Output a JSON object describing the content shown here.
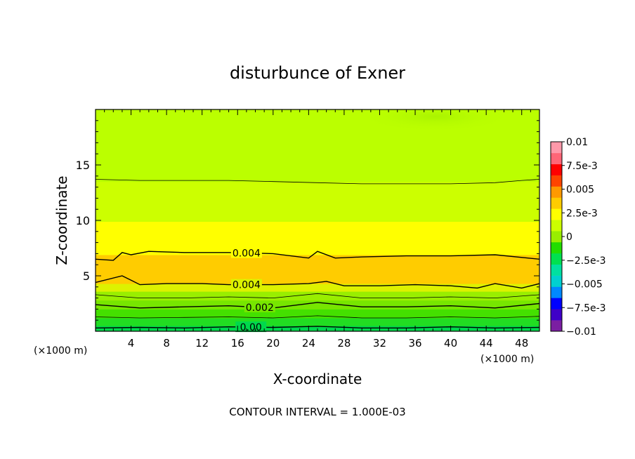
{
  "chart_data": {
    "type": "heatmap",
    "title": "disturbunce of Exner",
    "xlabel": "X-coordinate",
    "ylabel": "Z-coordinate",
    "x_unit_left": "(×1000 m)",
    "x_unit_right": "(×1000 m)",
    "footer": "CONTOUR INTERVAL = 1.000E-03",
    "xlim": [
      0,
      50
    ],
    "ylim": [
      0,
      20
    ],
    "x_ticks": [
      4,
      8,
      12,
      16,
      20,
      24,
      28,
      32,
      36,
      40,
      44,
      48
    ],
    "x_tick_labels": [
      "4",
      "8",
      "12",
      "16",
      "20",
      "24",
      "28",
      "32",
      "36",
      "40",
      "44",
      "48"
    ],
    "y_ticks": [
      5,
      10,
      15
    ],
    "y_tick_labels": [
      "5",
      "10",
      "15"
    ],
    "colorbar": {
      "levels": [
        -0.01,
        -0.0075,
        -0.005,
        -0.0025,
        0,
        0.0025,
        0.005,
        0.0075,
        0.01
      ],
      "labels": [
        "0.01",
        "7.5e-3",
        "0.005",
        "2.5e-3",
        "0",
        "−2.5e-3",
        "−0.005",
        "−7.5e-3",
        "−0.01"
      ],
      "colors": [
        "#7b1fa2",
        "#3f00c8",
        "#0000ff",
        "#0088ff",
        "#00d0d0",
        "#00e0a0",
        "#00e050",
        "#22dd00",
        "#99ee00",
        "#ccff00",
        "#ffff00",
        "#ffcc00",
        "#ff9900",
        "#ff4400",
        "#ff0000",
        "#ff6677",
        "#ff99aa"
      ]
    },
    "layers": [
      {
        "z_bottom": 0.0,
        "z_top": 0.5,
        "value": 0.0,
        "color": "#00d84c"
      },
      {
        "z_bottom": 0.5,
        "z_top": 1.2,
        "value": 0.0005,
        "color": "#22dd22"
      },
      {
        "z_bottom": 1.2,
        "z_top": 2.0,
        "value": 0.001,
        "color": "#44e000"
      },
      {
        "z_bottom": 2.0,
        "z_top": 2.8,
        "value": 0.0015,
        "color": "#77e600"
      },
      {
        "z_bottom": 2.8,
        "z_top": 3.6,
        "value": 0.002,
        "color": "#99ee00"
      },
      {
        "z_bottom": 3.6,
        "z_top": 4.3,
        "value": 0.003,
        "color": "#ddf200"
      },
      {
        "z_bottom": 4.3,
        "z_top": 6.9,
        "value": 0.0045,
        "color": "#ffcc00"
      },
      {
        "z_bottom": 6.9,
        "z_top": 9.9,
        "value": 0.0035,
        "color": "#ffff00"
      },
      {
        "z_bottom": 9.9,
        "z_top": 13.5,
        "value": 0.0025,
        "color": "#ccff00"
      },
      {
        "z_bottom": 13.5,
        "z_top": 20.0,
        "value": 0.002,
        "color": "#bbff00"
      }
    ],
    "contours": [
      {
        "value": 0.0,
        "label": "0.00",
        "label_x": 17.5,
        "points": [
          [
            0,
            0.3
          ],
          [
            5,
            0.35
          ],
          [
            10,
            0.3
          ],
          [
            15,
            0.4
          ],
          [
            20,
            0.35
          ],
          [
            25,
            0.45
          ],
          [
            30,
            0.3
          ],
          [
            35,
            0.3
          ],
          [
            40,
            0.4
          ],
          [
            45,
            0.3
          ],
          [
            50,
            0.35
          ]
        ]
      },
      {
        "value": 0.001,
        "label": "",
        "label_x": null,
        "points": [
          [
            0,
            1.3
          ],
          [
            5,
            1.2
          ],
          [
            10,
            1.25
          ],
          [
            15,
            1.3
          ],
          [
            20,
            1.2
          ],
          [
            25,
            1.4
          ],
          [
            30,
            1.2
          ],
          [
            35,
            1.2
          ],
          [
            40,
            1.3
          ],
          [
            45,
            1.2
          ],
          [
            50,
            1.35
          ]
        ]
      },
      {
        "value": 0.002,
        "label": "0.002",
        "label_x": 18.5,
        "points": [
          [
            0,
            2.4
          ],
          [
            5,
            2.1
          ],
          [
            10,
            2.2
          ],
          [
            15,
            2.3
          ],
          [
            20,
            2.1
          ],
          [
            25,
            2.6
          ],
          [
            30,
            2.2
          ],
          [
            35,
            2.2
          ],
          [
            40,
            2.3
          ],
          [
            45,
            2.1
          ],
          [
            50,
            2.5
          ]
        ]
      },
      {
        "value": 0.003,
        "label": "",
        "label_x": null,
        "points": [
          [
            0,
            3.3
          ],
          [
            5,
            3.0
          ],
          [
            10,
            3.0
          ],
          [
            15,
            3.1
          ],
          [
            20,
            3.0
          ],
          [
            25,
            3.4
          ],
          [
            30,
            3.0
          ],
          [
            35,
            3.0
          ],
          [
            40,
            3.1
          ],
          [
            45,
            3.0
          ],
          [
            50,
            3.3
          ]
        ]
      },
      {
        "value": 0.004,
        "label": "0.004",
        "label_x": 17.0,
        "points": [
          [
            0,
            4.4
          ],
          [
            3,
            5.0
          ],
          [
            4,
            4.6
          ],
          [
            5,
            4.2
          ],
          [
            8,
            4.3
          ],
          [
            12,
            4.3
          ],
          [
            15,
            4.2
          ],
          [
            20,
            4.2
          ],
          [
            24,
            4.3
          ],
          [
            26,
            4.5
          ],
          [
            28,
            4.1
          ],
          [
            32,
            4.1
          ],
          [
            36,
            4.2
          ],
          [
            40,
            4.1
          ],
          [
            43,
            3.9
          ],
          [
            45,
            4.3
          ],
          [
            48,
            3.9
          ],
          [
            50,
            4.3
          ]
        ]
      },
      {
        "value": 0.004,
        "label": "0.004",
        "label_x": 17.0,
        "points": [
          [
            0,
            6.5
          ],
          [
            2,
            6.4
          ],
          [
            3,
            7.1
          ],
          [
            4,
            6.9
          ],
          [
            6,
            7.2
          ],
          [
            10,
            7.1
          ],
          [
            15,
            7.1
          ],
          [
            20,
            7.0
          ],
          [
            24,
            6.6
          ],
          [
            25,
            7.2
          ],
          [
            27,
            6.6
          ],
          [
            30,
            6.7
          ],
          [
            35,
            6.8
          ],
          [
            40,
            6.8
          ],
          [
            45,
            6.9
          ],
          [
            50,
            6.5
          ]
        ]
      },
      {
        "value": 0.003,
        "label": "",
        "label_x": null,
        "points": [
          [
            0,
            13.7
          ],
          [
            5,
            13.6
          ],
          [
            10,
            13.6
          ],
          [
            15,
            13.6
          ],
          [
            20,
            13.5
          ],
          [
            25,
            13.4
          ],
          [
            30,
            13.3
          ],
          [
            35,
            13.3
          ],
          [
            40,
            13.3
          ],
          [
            45,
            13.4
          ],
          [
            48,
            13.6
          ],
          [
            50,
            13.7
          ]
        ]
      }
    ]
  }
}
